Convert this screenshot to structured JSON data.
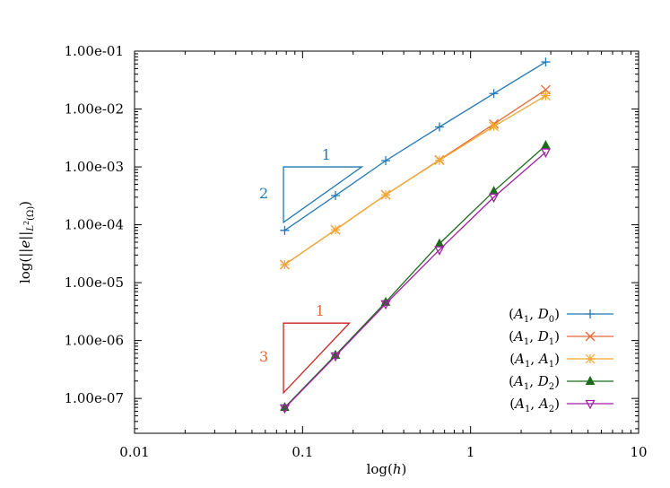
{
  "chart_data": {
    "type": "line",
    "xscale": "log",
    "yscale": "log",
    "xlim": [
      0.01,
      10
    ],
    "ylim": [
      2.5e-08,
      0.1
    ],
    "xlabel": "log(h)",
    "ylabel": "log(||e||_{L²(Ω)})",
    "x_ticks": [
      {
        "value": 0.01,
        "label": "0.01"
      },
      {
        "value": 0.1,
        "label": "0.1"
      },
      {
        "value": 1,
        "label": "1"
      },
      {
        "value": 10,
        "label": "10"
      }
    ],
    "y_ticks": [
      {
        "value": 0.1,
        "label": "1.00e-01"
      },
      {
        "value": 0.01,
        "label": "1.00e-02"
      },
      {
        "value": 0.001,
        "label": "1.00e-03"
      },
      {
        "value": 0.0001,
        "label": "1.00e-04"
      },
      {
        "value": 1e-05,
        "label": "1.00e-05"
      },
      {
        "value": 1e-06,
        "label": "1.00e-06"
      },
      {
        "value": 1e-07,
        "label": "1.00e-07"
      }
    ],
    "x": [
      0.0783,
      0.157,
      0.3125,
      0.6525,
      1.375,
      2.8
    ],
    "series": [
      {
        "name": "(A1, D0)",
        "marker": "plus",
        "color": "#1f77b4",
        "values": [
          8e-05,
          0.00032,
          0.00128,
          0.0049,
          0.0185,
          0.065
        ]
      },
      {
        "name": "(A1, D1)",
        "marker": "x",
        "color": "#e8683a",
        "values": [
          2.05e-05,
          8.2e-05,
          0.00033,
          0.00132,
          0.0055,
          0.0215
        ]
      },
      {
        "name": "(A1, A1)",
        "marker": "star",
        "color": "#f0a830",
        "values": [
          2.05e-05,
          8.2e-05,
          0.00033,
          0.0013,
          0.005,
          0.017
        ]
      },
      {
        "name": "(A1, D2)",
        "marker": "triangle-up",
        "color": "#1b6b1b",
        "values": [
          7e-08,
          5.6e-07,
          4.6e-06,
          4.7e-05,
          0.00038,
          0.00235
        ]
      },
      {
        "name": "(A1, A2)",
        "marker": "triangle-down",
        "color": "#a020a0",
        "values": [
          6.8e-08,
          5.4e-07,
          4.3e-06,
          3.7e-05,
          0.0003,
          0.0018
        ]
      }
    ],
    "slope_triangles": [
      {
        "color": "#1f77b4",
        "run_label": "1",
        "rise_label": "2",
        "corner": [
          0.077,
          0.001
        ],
        "x_end": 0.225,
        "y_end": 0.00011
      },
      {
        "color": "#cc2222",
        "run_label": "1",
        "rise_label": "3",
        "corner": [
          0.077,
          2e-06
        ],
        "x_end": 0.19,
        "y_end": 1.25e-07
      }
    ],
    "slope_label_colors": {
      "run": "#e8683a",
      "rise": "#e8683a",
      "blue": "#1f77b4"
    },
    "legend_position": "bottom-right",
    "grid": false
  }
}
